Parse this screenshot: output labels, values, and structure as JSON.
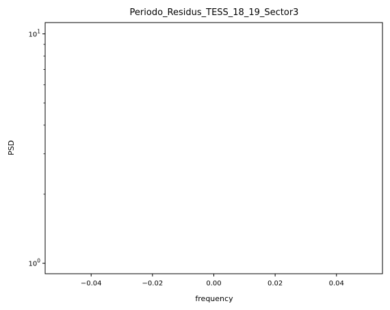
{
  "chart_data": {
    "type": "line",
    "title": "Periodo_Residus_TESS_18_19_Sector3",
    "xlabel": "frequency",
    "ylabel": "PSD",
    "xlim": [
      -0.055,
      0.055
    ],
    "ylim": [
      0.9,
      11.2
    ],
    "yscale": "log",
    "grid": false,
    "series": [],
    "x_ticks": [
      {
        "value": -0.04,
        "label": "−0.04"
      },
      {
        "value": -0.02,
        "label": "−0.02"
      },
      {
        "value": 0.0,
        "label": "0.00"
      },
      {
        "value": 0.02,
        "label": "0.02"
      },
      {
        "value": 0.04,
        "label": "0.04"
      }
    ],
    "y_major_ticks": [
      {
        "value": 1,
        "base": "10",
        "exp": "0"
      },
      {
        "value": 10,
        "base": "10",
        "exp": "1"
      }
    ],
    "y_minor_ticks": [
      2,
      3,
      4,
      5,
      6,
      7,
      8,
      9
    ]
  }
}
